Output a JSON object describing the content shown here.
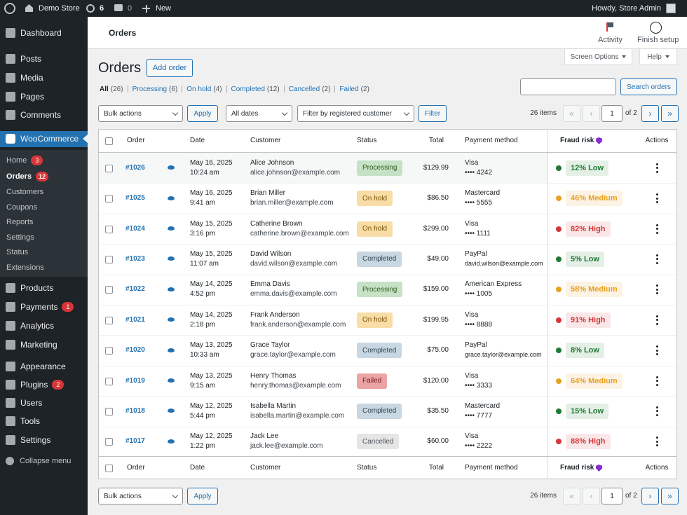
{
  "admin_bar": {
    "site": "Demo Store",
    "updates": "6",
    "comments": "0",
    "new": "New",
    "greeting": "Howdy, Store Admin"
  },
  "sidebar": {
    "menu": [
      {
        "label": "Dashboard"
      },
      {
        "label": "Posts"
      },
      {
        "label": "Media"
      },
      {
        "label": "Pages"
      },
      {
        "label": "Comments"
      },
      {
        "label": "WooCommerce"
      },
      {
        "label": "Products"
      },
      {
        "label": "Payments",
        "badge": "1"
      },
      {
        "label": "Analytics"
      },
      {
        "label": "Marketing"
      },
      {
        "label": "Appearance"
      },
      {
        "label": "Plugins",
        "badge": "2"
      },
      {
        "label": "Users"
      },
      {
        "label": "Tools"
      },
      {
        "label": "Settings"
      }
    ],
    "submenu": [
      {
        "label": "Home",
        "badge": "3"
      },
      {
        "label": "Orders",
        "badge": "12"
      },
      {
        "label": "Customers"
      },
      {
        "label": "Coupons"
      },
      {
        "label": "Reports"
      },
      {
        "label": "Settings"
      },
      {
        "label": "Status"
      },
      {
        "label": "Extensions"
      }
    ],
    "collapse": "Collapse menu"
  },
  "header": {
    "title": "Orders",
    "activity": "Activity",
    "finish_setup": "Finish setup",
    "screen_options": "Screen Options",
    "help": "Help"
  },
  "page_title": "Orders",
  "add_order": "Add order",
  "views": [
    {
      "label": "All",
      "count": "(26)"
    },
    {
      "label": "Processing",
      "count": "(6)"
    },
    {
      "label": "On hold",
      "count": "(4)"
    },
    {
      "label": "Completed",
      "count": "(12)"
    },
    {
      "label": "Cancelled",
      "count": "(2)"
    },
    {
      "label": "Failed",
      "count": "(2)"
    }
  ],
  "search_button": "Search orders",
  "toolbar": {
    "bulk_actions": "Bulk actions",
    "apply": "Apply",
    "dates": "All dates",
    "customer_filter": "Filter by registered customer",
    "filter": "Filter"
  },
  "pagination": {
    "items": "26 items",
    "first": "«",
    "prev": "‹",
    "page": "1",
    "of": "of 2",
    "next": "›",
    "last": "»"
  },
  "status_colors": {
    "Processing": [
      "#c6e1c6",
      "#2f5d1e"
    ],
    "On hold": [
      "#f8dda7",
      "#7a5305"
    ],
    "Completed": [
      "#c8d7e1",
      "#2e4453"
    ],
    "Failed": [
      "#eba3a3",
      "#761919"
    ],
    "Cancelled": [
      "#e5e5e5",
      "#50575e"
    ]
  },
  "table": {
    "columns": [
      "Order",
      "Date",
      "Customer",
      "Status",
      "Total",
      "Payment method",
      "Fraud risk",
      "Actions"
    ],
    "rows": [
      {
        "order": "#1026",
        "date": "May 16, 2025",
        "time": "10:24 am",
        "name": "Alice Johnson",
        "email": "alice.johnson@example.com",
        "status": "Processing",
        "total": "$129.99",
        "payment": "Visa",
        "payment_detail": "•••• 4242",
        "fraud": "12% Low",
        "fraud_color": "#1e7a34"
      },
      {
        "order": "#1025",
        "date": "May 16, 2025",
        "time": "9:41 am",
        "name": "Brian Miller",
        "email": "brian.miller@example.com",
        "status": "On hold",
        "total": "$86.50",
        "payment": "Mastercard",
        "payment_detail": "•••• 5555",
        "fraud": "46% Medium",
        "fraud_color": "#e9a01f"
      },
      {
        "order": "#1024",
        "date": "May 15, 2025",
        "time": "3:16 pm",
        "name": "Catherine Brown",
        "email": "catherine.brown@example.com",
        "status": "On hold",
        "total": "$299.00",
        "payment": "Visa",
        "payment_detail": "•••• 1111",
        "fraud": "82% High",
        "fraud_color": "#d63638"
      },
      {
        "order": "#1023",
        "date": "May 15, 2025",
        "time": "11:07 am",
        "name": "David Wilson",
        "email": "david.wilson@example.com",
        "status": "Completed",
        "total": "$49.00",
        "payment": "PayPal",
        "payment_detail": "david.wilson@example.com",
        "fraud": "5% Low",
        "fraud_color": "#1e7a34"
      },
      {
        "order": "#1022",
        "date": "May 14, 2025",
        "time": "4:52 pm",
        "name": "Emma Davis",
        "email": "emma.davis@example.com",
        "status": "Processing",
        "total": "$159.00",
        "payment": "American Express",
        "payment_detail": "•••• 1005",
        "fraud": "58% Medium",
        "fraud_color": "#e9a01f"
      },
      {
        "order": "#1021",
        "date": "May 14, 2025",
        "time": "2:18 pm",
        "name": "Frank Anderson",
        "email": "frank.anderson@example.com",
        "status": "On hold",
        "total": "$199.95",
        "payment": "Visa",
        "payment_detail": "•••• 8888",
        "fraud": "91% High",
        "fraud_color": "#d63638"
      },
      {
        "order": "#1020",
        "date": "May 13, 2025",
        "time": "10:33 am",
        "name": "Grace Taylor",
        "email": "grace.taylor@example.com",
        "status": "Completed",
        "total": "$75.00",
        "payment": "PayPal",
        "payment_detail": "grace.taylor@example.com",
        "fraud": "8% Low",
        "fraud_color": "#1e7a34"
      },
      {
        "order": "#1019",
        "date": "May 13, 2025",
        "time": "9:15 am",
        "name": "Henry Thomas",
        "email": "henry.thomas@example.com",
        "status": "Failed",
        "total": "$120.00",
        "payment": "Visa",
        "payment_detail": "•••• 3333",
        "fraud": "64% Medium",
        "fraud_color": "#e9a01f"
      },
      {
        "order": "#1018",
        "date": "May 12, 2025",
        "time": "5:44 pm",
        "name": "Isabella Martin",
        "email": "isabella.martin@example.com",
        "status": "Completed",
        "total": "$35.50",
        "payment": "Mastercard",
        "payment_detail": "•••• 7777",
        "fraud": "15% Low",
        "fraud_color": "#1e7a34"
      },
      {
        "order": "#1017",
        "date": "May 12, 2025",
        "time": "1:22 pm",
        "name": "Jack Lee",
        "email": "jack.lee@example.com",
        "status": "Cancelled",
        "total": "$60.00",
        "payment": "Visa",
        "payment_detail": "•••• 2222",
        "fraud": "88% High",
        "fraud_color": "#d63638"
      }
    ]
  }
}
